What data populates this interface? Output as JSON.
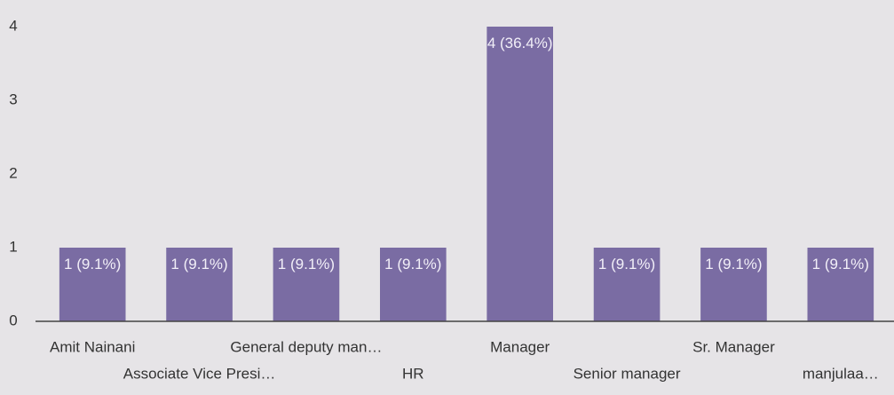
{
  "chart_data": {
    "type": "bar",
    "categories": [
      "Amit Nainani",
      "Associate Vice Presi…",
      "General deputy man…",
      "HR",
      "Manager",
      "Senior manager",
      "Sr. Manager",
      "manjulaa…"
    ],
    "values": [
      1,
      1,
      1,
      1,
      4,
      1,
      1,
      1
    ],
    "value_labels": [
      "1 (9.1%)",
      "1 (9.1%)",
      "1 (9.1%)",
      "1 (9.1%)",
      "4 (36.4%)",
      "1 (9.1%)",
      "1 (9.1%)",
      "1 (9.1%)"
    ],
    "color": "#7a6ca3",
    "ylim": [
      0,
      4
    ],
    "yticks": [
      0,
      1,
      2,
      3,
      4
    ],
    "grid": false
  }
}
